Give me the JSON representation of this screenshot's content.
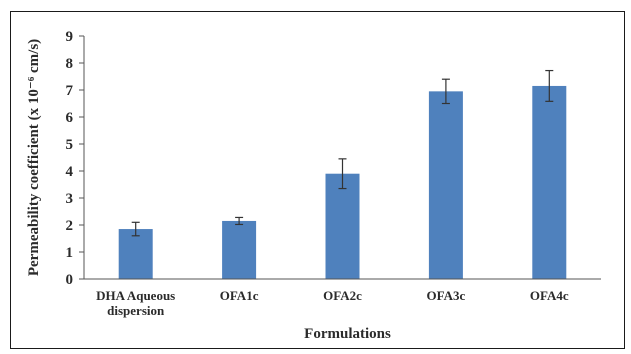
{
  "chart_data": {
    "type": "bar",
    "categories": [
      [
        "DHA Aqueous",
        "dispersion"
      ],
      [
        "OFA1c"
      ],
      [
        "OFA2c"
      ],
      [
        "OFA3c"
      ],
      [
        "OFA4c"
      ]
    ],
    "values": [
      1.85,
      2.15,
      3.9,
      6.95,
      7.15
    ],
    "errors": [
      0.25,
      0.13,
      0.55,
      0.45,
      0.57
    ],
    "ylim": [
      0,
      9
    ],
    "yticks": [
      "0",
      "1",
      "2",
      "3",
      "4",
      "5",
      "6",
      "7",
      "8",
      "9"
    ],
    "xlabel": "Formulations",
    "ylabel": "Permeability coefficient (x 10⁻⁶ cm/s)",
    "bar_color": "#4f81bd",
    "error_bar_color": "#333333",
    "grid": false,
    "legend": "none"
  }
}
